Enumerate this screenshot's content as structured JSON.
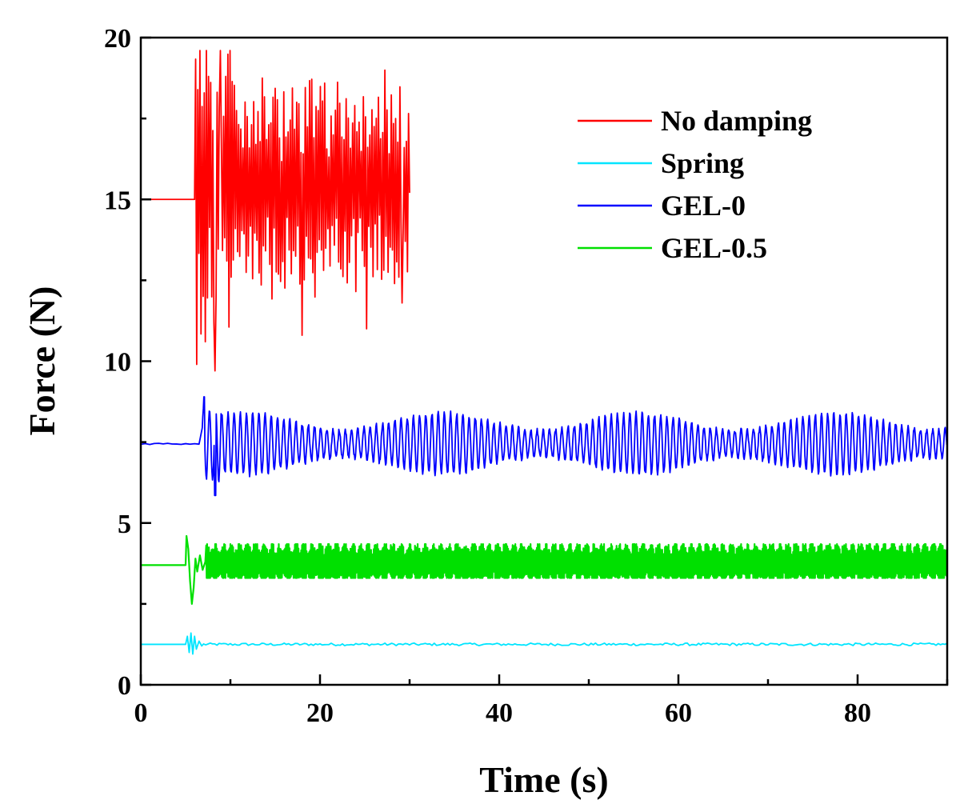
{
  "chart_data": {
    "type": "line",
    "title": "",
    "xlabel": "Time (s)",
    "ylabel": "Force (N)",
    "xlim": [
      0,
      90
    ],
    "ylim": [
      0,
      20
    ],
    "x_ticks": [
      0,
      20,
      40,
      60,
      80
    ],
    "y_ticks": [
      0,
      5,
      10,
      15,
      20
    ],
    "x_tick_labels": [
      "0",
      "20",
      "40",
      "60",
      "80"
    ],
    "y_tick_labels": [
      "0",
      "5",
      "10",
      "15",
      "20"
    ],
    "grid": false,
    "legend_position": "top-right",
    "series": [
      {
        "name": "No damping",
        "color": "#ff0000",
        "baseline": 15.0,
        "onset": 6.0,
        "end": 30.0,
        "oscillation": "large irregular",
        "min": 9.7,
        "max": 19.6,
        "peaks": [
          [
            6.2,
            9.9
          ],
          [
            6.6,
            19.6
          ],
          [
            7.2,
            10.6
          ],
          [
            7.6,
            18.8
          ],
          [
            8.3,
            9.7
          ],
          [
            8.9,
            19.6
          ],
          [
            9.5,
            18.8
          ],
          [
            18.0,
            10.8
          ],
          [
            25.2,
            11.0
          ],
          [
            29.2,
            11.8
          ],
          [
            30.0,
            15.2
          ]
        ]
      },
      {
        "name": "Spring",
        "color": "#00e5ff",
        "baseline": 1.25,
        "onset": 5.0,
        "end": 90.0,
        "oscillation": "tiny",
        "min": 0.95,
        "max": 1.6
      },
      {
        "name": "GEL-0",
        "color": "#0000ff",
        "baseline": 7.45,
        "onset": 6.8,
        "end": 90.0,
        "oscillation": "periodic",
        "min": 5.85,
        "max": 8.9
      },
      {
        "name": "GEL-0.5",
        "color": "#00e000",
        "baseline": 3.7,
        "onset": 5.0,
        "end": 90.0,
        "oscillation": "dense narrow band",
        "min": 2.5,
        "max": 4.6
      }
    ]
  }
}
